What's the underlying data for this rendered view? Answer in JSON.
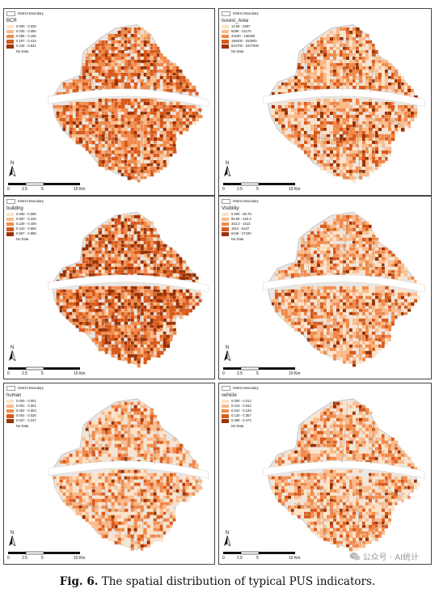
{
  "caption": {
    "label": "Fig. 6.",
    "text": "The spatial distribution of typical PUS indicators."
  },
  "watermark": {
    "text": "公众号 · AI统计",
    "icon": "wechat-icon"
  },
  "boundary_label": "District Boundary",
  "no_data_label": "No Data",
  "north_label": "N",
  "scale_labels": [
    "0",
    "2.5",
    "5",
    "10 Km"
  ],
  "panels": [
    {
      "id": "bcr",
      "title": "BCR",
      "classes": [
        "0.000 - 0.029",
        "0.030 - 0.085",
        "0.086 - 0.196",
        "0.197 - 0.414",
        "0.415 - 0.841"
      ],
      "colors": [
        "#fde3c8",
        "#fbba8a",
        "#f18a4a",
        "#d85a1c",
        "#9a3204"
      ],
      "weights": [
        0.06,
        0.18,
        0.34,
        0.3,
        0.12
      ]
    },
    {
      "id": "isovist",
      "title": "Isovist_Area",
      "classes": [
        "14.66 - 8287",
        "8288 - 43170",
        "43180 - 190300",
        "190400 - 810600",
        "810700 - 2427000"
      ],
      "colors": [
        "#fde3c8",
        "#fbba8a",
        "#f18a4a",
        "#d85a1c",
        "#9a3204"
      ],
      "weights": [
        0.2,
        0.3,
        0.26,
        0.16,
        0.08
      ]
    },
    {
      "id": "building",
      "title": "building",
      "classes": [
        "0.000 - 0.096",
        "0.097 - 0.228",
        "0.229 - 0.409",
        "0.410 - 0.656",
        "0.657 - 0.896"
      ],
      "colors": [
        "#fde3c8",
        "#fbba8a",
        "#f18a4a",
        "#d85a1c",
        "#9a3204"
      ],
      "weights": [
        0.05,
        0.12,
        0.26,
        0.32,
        0.25
      ]
    },
    {
      "id": "visibility",
      "title": "Visibility",
      "classes": [
        "0.000 - 65.79",
        "65.80 - 343.2",
        "343.3 - 1513",
        "1514 - 6447",
        "6448 - 27150"
      ],
      "colors": [
        "#fde3c8",
        "#fbba8a",
        "#f18a4a",
        "#d85a1c",
        "#9a3204"
      ],
      "weights": [
        0.2,
        0.33,
        0.27,
        0.14,
        0.06
      ]
    },
    {
      "id": "human",
      "title": "human",
      "classes": [
        "0.000 - 0.001",
        "0.001 - 0.002",
        "0.002 - 0.003",
        "0.004 - 0.026",
        "0.027 - 0.247"
      ],
      "colors": [
        "#fde3c8",
        "#fbba8a",
        "#f18a4a",
        "#d85a1c",
        "#9a3204"
      ],
      "weights": [
        0.28,
        0.28,
        0.26,
        0.15,
        0.03
      ]
    },
    {
      "id": "vehicle",
      "title": "vehicle",
      "classes": [
        "0.000 - 0.012",
        "0.013 - 0.043",
        "0.044 - 0.129",
        "0.130 - 0.357",
        "0.358 - 0.473"
      ],
      "colors": [
        "#fde3c8",
        "#fbba8a",
        "#f18a4a",
        "#d85a1c",
        "#9a3204"
      ],
      "weights": [
        0.26,
        0.3,
        0.26,
        0.14,
        0.04
      ]
    }
  ]
}
